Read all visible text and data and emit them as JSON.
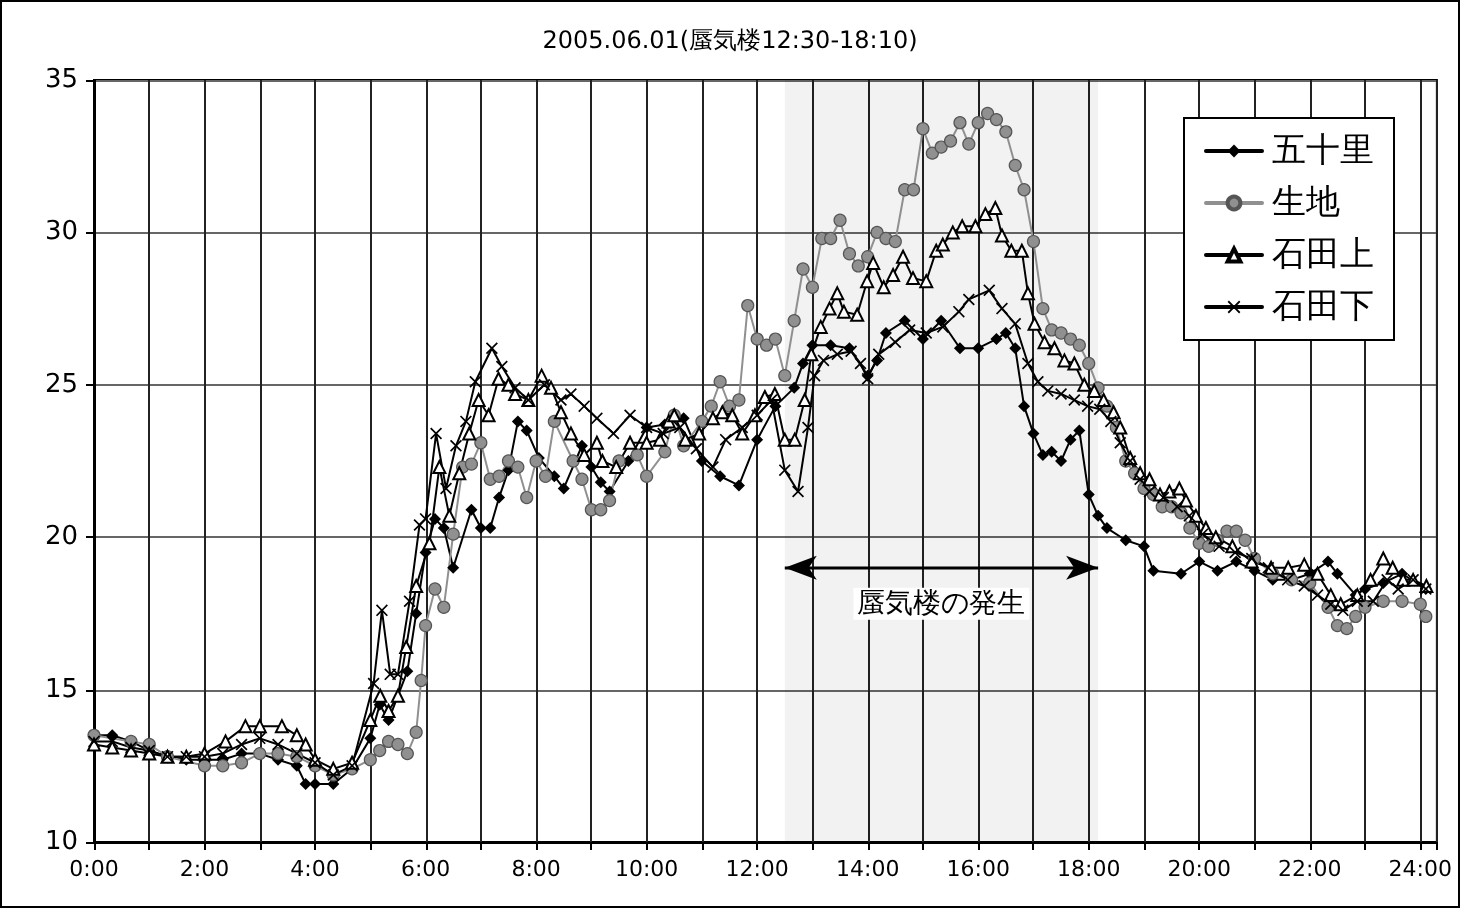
{
  "chart_data": {
    "type": "line",
    "title": "2005.06.01(蜃気楼12:30-18:10)",
    "xlim": [
      0,
      24.3
    ],
    "xticks": [
      {
        "value": 0,
        "label": "0:00"
      },
      {
        "value": 1,
        "label": null
      },
      {
        "value": 2,
        "label": "2:00"
      },
      {
        "value": 3,
        "label": null
      },
      {
        "value": 4,
        "label": "4:00"
      },
      {
        "value": 5,
        "label": null
      },
      {
        "value": 6,
        "label": "6:00"
      },
      {
        "value": 7,
        "label": null
      },
      {
        "value": 8,
        "label": "8:00"
      },
      {
        "value": 9,
        "label": null
      },
      {
        "value": 10,
        "label": "10:00"
      },
      {
        "value": 11,
        "label": null
      },
      {
        "value": 12,
        "label": "12:00"
      },
      {
        "value": 13,
        "label": null
      },
      {
        "value": 14,
        "label": "14:00"
      },
      {
        "value": 15,
        "label": null
      },
      {
        "value": 16,
        "label": "16:00"
      },
      {
        "value": 17,
        "label": null
      },
      {
        "value": 18,
        "label": "18:00"
      },
      {
        "value": 19,
        "label": null
      },
      {
        "value": 20,
        "label": "20:00"
      },
      {
        "value": 21,
        "label": null
      },
      {
        "value": 22,
        "label": "22:00"
      },
      {
        "value": 23,
        "label": null
      },
      {
        "value": 24,
        "label": "24:00"
      }
    ],
    "ylim": [
      10,
      35
    ],
    "yticks": [
      10,
      15,
      20,
      25,
      30,
      35
    ],
    "grid": true,
    "legend": "top right",
    "bands": [
      {
        "axis": "x",
        "from": 12.5,
        "to": 18.17,
        "label": "蜃気楼の発生"
      }
    ],
    "series": [
      {
        "name": "五十里",
        "color": "#000000",
        "marker": "diamond",
        "x": [
          0,
          0.33,
          0.67,
          1,
          1.33,
          1.67,
          2,
          2.33,
          2.67,
          3,
          3.33,
          3.67,
          3.83,
          4,
          4.33,
          4.67,
          5,
          5.17,
          5.33,
          5.67,
          5.83,
          6,
          6.17,
          6.33,
          6.5,
          6.83,
          7,
          7.17,
          7.33,
          7.5,
          7.67,
          7.83,
          8.05,
          8.33,
          8.5,
          8.83,
          9,
          9.17,
          9.33,
          9.67,
          10,
          10.33,
          10.67,
          11,
          11.33,
          11.67,
          12,
          12.33,
          12.67,
          12.83,
          13,
          13.33,
          13.67,
          14,
          14.17,
          14.33,
          14.67,
          15,
          15.33,
          15.67,
          16,
          16.33,
          16.5,
          16.67,
          16.83,
          17,
          17.17,
          17.33,
          17.5,
          17.67,
          17.83,
          18,
          18.17,
          18.33,
          18.67,
          19,
          19.17,
          19.67,
          20,
          20.33,
          20.67,
          21,
          21.33,
          21.67,
          22,
          22.33,
          22.5,
          22.83,
          23,
          23.33,
          23.67,
          24.1
        ],
        "values": [
          13.5,
          13.5,
          13.3,
          13.0,
          12.8,
          12.7,
          12.7,
          12.7,
          12.9,
          12.9,
          12.7,
          12.5,
          11.9,
          11.9,
          11.9,
          12.4,
          13.4,
          14.5,
          14.0,
          15.6,
          17.5,
          19.5,
          20.6,
          20.3,
          19.0,
          20.9,
          20.3,
          20.3,
          21.3,
          22.2,
          23.8,
          23.5,
          22.6,
          22.0,
          21.6,
          23.0,
          22.3,
          21.8,
          21.5,
          22.5,
          23.6,
          23.7,
          23.9,
          22.5,
          22.0,
          21.7,
          23.2,
          24.3,
          24.9,
          25.7,
          26.3,
          26.3,
          26.2,
          25.3,
          25.8,
          26.7,
          27.1,
          26.5,
          27.1,
          26.2,
          26.2,
          26.5,
          26.7,
          26.2,
          24.3,
          23.4,
          22.7,
          22.8,
          22.5,
          23.2,
          23.5,
          21.4,
          20.7,
          20.3,
          19.9,
          19.7,
          18.9,
          18.8,
          19.2,
          18.9,
          19.2,
          18.9,
          18.6,
          18.6,
          18.8,
          19.2,
          18.8,
          18.1,
          18.3,
          18.5,
          18.8,
          18.3
        ]
      },
      {
        "name": "生地",
        "color": "#909090",
        "marker": "circle",
        "x": [
          0,
          0.67,
          1,
          1.33,
          2,
          2.33,
          2.67,
          3,
          3.33,
          3.67,
          4,
          4.33,
          4.67,
          5,
          5.17,
          5.33,
          5.5,
          5.67,
          5.83,
          5.92,
          6,
          6.17,
          6.33,
          6.5,
          6.67,
          6.83,
          7,
          7.17,
          7.33,
          7.5,
          7.67,
          7.83,
          8,
          8.17,
          8.33,
          8.67,
          8.83,
          9,
          9.17,
          9.33,
          9.5,
          9.83,
          10,
          10.33,
          10.5,
          10.67,
          11,
          11.17,
          11.33,
          11.5,
          11.67,
          11.83,
          12,
          12.17,
          12.33,
          12.5,
          12.67,
          12.83,
          13,
          13.17,
          13.33,
          13.5,
          13.67,
          13.83,
          14,
          14.17,
          14.33,
          14.5,
          14.67,
          14.83,
          15,
          15.17,
          15.33,
          15.5,
          15.67,
          15.83,
          16,
          16.17,
          16.33,
          16.5,
          16.67,
          16.83,
          17,
          17.17,
          17.33,
          17.5,
          17.67,
          17.83,
          18,
          18.17,
          18.33,
          18.5,
          18.67,
          18.83,
          19,
          19.17,
          19.33,
          19.5,
          19.67,
          19.83,
          20,
          20.17,
          20.33,
          20.5,
          20.67,
          20.83,
          21,
          21.33,
          21.67,
          22,
          22.33,
          22.5,
          22.67,
          22.83,
          23,
          23.33,
          23.67,
          24,
          24.1
        ],
        "values": [
          13.5,
          13.3,
          13.2,
          12.8,
          12.5,
          12.5,
          12.6,
          12.9,
          12.9,
          12.8,
          12.5,
          12.2,
          12.4,
          12.7,
          13.0,
          13.3,
          13.2,
          12.9,
          13.6,
          15.3,
          17.1,
          18.3,
          17.7,
          20.1,
          22.3,
          22.4,
          23.1,
          21.9,
          22.0,
          22.5,
          22.3,
          21.3,
          22.5,
          22.0,
          23.8,
          22.5,
          21.9,
          20.9,
          20.9,
          21.2,
          22.5,
          22.7,
          22.0,
          22.8,
          24.0,
          23.0,
          23.8,
          24.3,
          25.1,
          24.3,
          24.5,
          27.6,
          26.5,
          26.3,
          26.5,
          25.3,
          27.1,
          28.8,
          28.2,
          29.8,
          29.8,
          30.4,
          29.3,
          28.9,
          29.2,
          30.0,
          29.8,
          29.7,
          31.4,
          31.4,
          33.4,
          32.6,
          32.8,
          33.0,
          33.6,
          32.9,
          33.6,
          33.9,
          33.7,
          33.3,
          32.2,
          31.4,
          29.7,
          27.5,
          26.8,
          26.7,
          26.5,
          26.3,
          25.7,
          24.9,
          24.3,
          23.6,
          22.5,
          22.1,
          21.6,
          21.4,
          21.0,
          21.0,
          20.8,
          20.3,
          19.8,
          19.7,
          19.9,
          20.2,
          20.2,
          19.9,
          19.3,
          18.8,
          18.6,
          18.5,
          17.7,
          17.1,
          17.0,
          17.4,
          17.7,
          17.9,
          17.9,
          17.8,
          17.4
        ]
      },
      {
        "name": "石田上",
        "color": "#000000",
        "marker": "triangle",
        "x": [
          0,
          0.33,
          0.67,
          1,
          1.33,
          1.67,
          2,
          2.38,
          2.74,
          3,
          3.4,
          3.67,
          3.83,
          4,
          4.33,
          4.67,
          5,
          5.18,
          5.33,
          5.5,
          5.65,
          5.83,
          6.07,
          6.25,
          6.43,
          6.61,
          6.79,
          6.96,
          7.14,
          7.32,
          7.5,
          7.62,
          7.86,
          8.1,
          8.27,
          8.45,
          8.63,
          8.87,
          9.1,
          9.2,
          9.45,
          9.7,
          10,
          10.24,
          10.4,
          10.5,
          10.7,
          10.95,
          11.2,
          11.37,
          11.55,
          11.73,
          11.96,
          12.14,
          12.32,
          12.5,
          12.68,
          12.86,
          12.98,
          13.15,
          13.31,
          13.45,
          13.57,
          13.81,
          13.99,
          14.1,
          14.29,
          14.46,
          14.64,
          14.82,
          15.06,
          15.24,
          15.36,
          15.54,
          15.71,
          15.95,
          16.13,
          16.31,
          16.43,
          16.6,
          16.79,
          16.9,
          17.02,
          17.2,
          17.38,
          17.56,
          17.74,
          17.92,
          18.1,
          18.27,
          18.45,
          18.57,
          18.75,
          18.93,
          19.1,
          19.29,
          19.46,
          19.64,
          19.76,
          19.94,
          20.12,
          20.3,
          20.6,
          20.95,
          21.3,
          21.61,
          21.9,
          22.14,
          22.38,
          22.56,
          22.86,
          23.1,
          23.33,
          23.5,
          23.69,
          23.87,
          24.11
        ],
        "values": [
          13.2,
          13.1,
          13.0,
          12.9,
          12.8,
          12.8,
          12.9,
          13.3,
          13.8,
          13.8,
          13.8,
          13.5,
          13.2,
          12.7,
          12.4,
          12.6,
          14.0,
          14.8,
          14.3,
          14.8,
          16.4,
          18.4,
          19.8,
          22.3,
          20.7,
          22.1,
          23.4,
          24.5,
          24.0,
          25.2,
          25.0,
          24.7,
          24.5,
          25.3,
          24.9,
          24.1,
          23.4,
          22.7,
          23.1,
          22.5,
          22.3,
          23.1,
          23.1,
          23.2,
          23.8,
          24.0,
          23.2,
          23.4,
          23.9,
          24.1,
          24.0,
          23.4,
          24.0,
          24.6,
          24.7,
          23.2,
          23.2,
          24.5,
          26.0,
          26.9,
          27.5,
          28.0,
          27.4,
          27.3,
          28.4,
          29.0,
          28.2,
          28.6,
          29.2,
          28.5,
          28.4,
          29.4,
          29.6,
          30.0,
          30.2,
          30.2,
          30.6,
          30.8,
          29.9,
          29.4,
          29.4,
          28.0,
          27.0,
          26.4,
          26.2,
          25.8,
          25.7,
          25.0,
          24.8,
          24.5,
          24.1,
          23.6,
          22.6,
          22.1,
          21.9,
          21.4,
          21.5,
          21.6,
          21.2,
          20.7,
          20.3,
          20.0,
          19.7,
          19.2,
          19.0,
          19.0,
          19.1,
          18.8,
          18.1,
          17.8,
          18.1,
          18.6,
          19.3,
          19.0,
          18.6,
          18.6,
          18.4
        ]
      },
      {
        "name": "石田下",
        "color": "#000000",
        "marker": "cross",
        "x": [
          0,
          0.33,
          0.67,
          1,
          1.33,
          1.67,
          2,
          2.33,
          2.67,
          3,
          3.33,
          3.67,
          4,
          4.33,
          4.67,
          5.06,
          5.21,
          5.36,
          5.5,
          5.71,
          5.89,
          6,
          6.19,
          6.37,
          6.55,
          6.73,
          6.9,
          7.2,
          7.38,
          7.62,
          7.86,
          8.15,
          8.45,
          8.63,
          8.87,
          9.1,
          9.4,
          9.7,
          10,
          10.3,
          10.6,
          10.9,
          11.2,
          11.43,
          11.73,
          12,
          12.26,
          12.5,
          12.74,
          12.92,
          13.04,
          13.2,
          13.45,
          13.7,
          13.87,
          14,
          14.2,
          14.5,
          14.76,
          15.06,
          15.36,
          15.65,
          15.83,
          16.2,
          16.43,
          16.67,
          16.9,
          17.08,
          17.26,
          17.5,
          17.74,
          17.98,
          18.2,
          18.4,
          18.57,
          18.75,
          18.93,
          19.1,
          19.35,
          19.6,
          19.82,
          20.06,
          20.36,
          20.65,
          20.95,
          21.25,
          21.6,
          21.9,
          22.14,
          22.38,
          22.6,
          22.86,
          23.15,
          23.4,
          23.6,
          23.87,
          24.1
        ],
        "values": [
          13.3,
          13.3,
          13.1,
          13.0,
          12.8,
          12.8,
          12.8,
          12.9,
          13.2,
          13.4,
          13.2,
          12.9,
          12.6,
          12.2,
          12.5,
          15.2,
          17.6,
          15.5,
          15.5,
          17.9,
          20.4,
          20.6,
          23.4,
          21.6,
          23.0,
          23.8,
          25.1,
          26.2,
          25.6,
          24.9,
          24.5,
          25.0,
          24.5,
          24.7,
          24.3,
          23.9,
          23.4,
          24.0,
          23.6,
          23.4,
          23.6,
          22.9,
          22.3,
          23.2,
          23.6,
          24.0,
          24.5,
          22.2,
          21.5,
          23.6,
          25.3,
          25.8,
          26.0,
          26.1,
          25.7,
          25.2,
          26.0,
          26.4,
          26.8,
          26.7,
          26.9,
          27.4,
          27.8,
          28.1,
          27.5,
          27.0,
          25.7,
          25.1,
          24.8,
          24.7,
          24.5,
          24.3,
          24.2,
          23.8,
          23.1,
          22.5,
          21.9,
          21.5,
          21.3,
          21.0,
          20.7,
          20.1,
          19.7,
          19.5,
          19.3,
          19.0,
          18.6,
          18.4,
          18.1,
          17.8,
          17.6,
          17.9,
          17.9,
          18.6,
          18.3,
          18.6,
          18.3
        ]
      }
    ]
  }
}
